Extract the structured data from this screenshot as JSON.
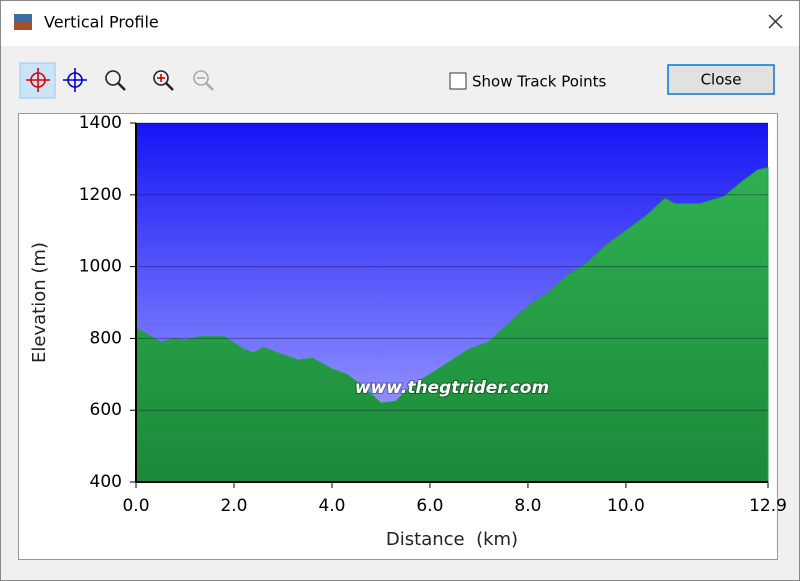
{
  "window": {
    "title": "Vertical Profile",
    "checkbox_label": "Show Track Points",
    "close_button": "Close"
  },
  "chart_data": {
    "type": "area",
    "x_label": "Distance  (km)",
    "y_label": "Elevation (m)",
    "watermark": "www.thegtrider.com",
    "x": [
      0,
      0.5,
      0.8,
      1.0,
      1.3,
      1.8,
      2.2,
      2.4,
      2.6,
      3.0,
      3.3,
      3.6,
      4.0,
      4.3,
      4.6,
      5.0,
      5.3,
      5.6,
      6.0,
      6.4,
      6.8,
      7.2,
      7.6,
      8.0,
      8.4,
      8.8,
      9.2,
      9.6,
      10.0,
      10.4,
      10.8,
      11.0,
      11.5,
      12.0,
      12.4,
      12.7,
      12.9
    ],
    "values": [
      830,
      790,
      800,
      795,
      805,
      805,
      770,
      760,
      775,
      755,
      740,
      745,
      715,
      700,
      670,
      620,
      625,
      665,
      700,
      735,
      770,
      790,
      840,
      890,
      925,
      975,
      1010,
      1060,
      1100,
      1140,
      1190,
      1175,
      1175,
      1195,
      1240,
      1270,
      1275
    ],
    "color": "#22a045",
    "xlim": [
      0,
      12.9
    ],
    "ylim": [
      400,
      1400
    ],
    "xticks": [
      {
        "value": 0,
        "label": "0.0"
      },
      {
        "value": 2,
        "label": "2.0"
      },
      {
        "value": 4,
        "label": "4.0"
      },
      {
        "value": 6,
        "label": "6.0"
      },
      {
        "value": 8,
        "label": "8.0"
      },
      {
        "value": 10,
        "label": "10.0"
      },
      12.9
    ],
    "yticks": [
      400,
      600,
      800,
      1000,
      1200,
      1400
    ],
    "grid": true
  }
}
